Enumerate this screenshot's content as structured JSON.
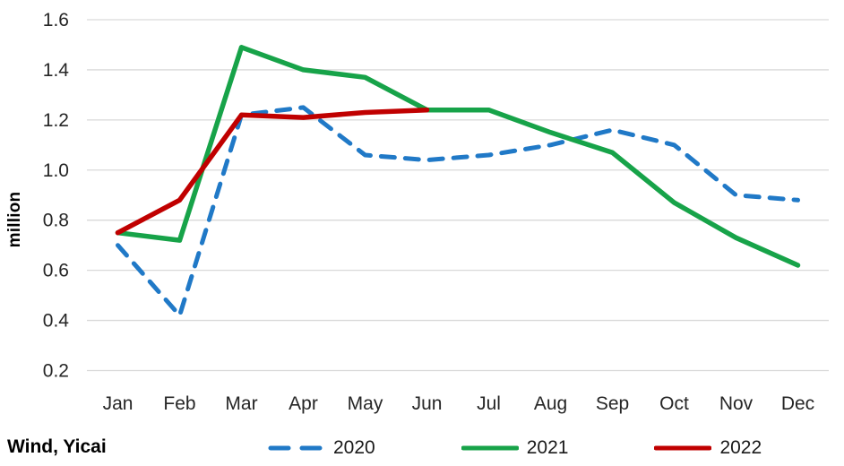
{
  "chart_data": {
    "type": "line",
    "title": "",
    "xlabel": "",
    "ylabel": "million",
    "source": "Wind, Yicai",
    "categories": [
      "Jan",
      "Feb",
      "Mar",
      "Apr",
      "May",
      "Jun",
      "Jul",
      "Aug",
      "Sep",
      "Oct",
      "Nov",
      "Dec"
    ],
    "yticks": [
      0.2,
      0.4,
      0.6,
      0.8,
      1.0,
      1.2,
      1.4,
      1.6
    ],
    "ytick_labels": [
      "0.2",
      "0.4",
      "0.6",
      "0.8",
      "1.0",
      "1.2",
      "1.4",
      "1.6"
    ],
    "ylim": [
      0.2,
      1.6
    ],
    "grid": "horizontal",
    "legend_position": "bottom",
    "colors": {
      "blue_2020": "#2079c7",
      "green_2021": "#17a349",
      "red_2022": "#c00000",
      "gridline": "#d9d9d9",
      "tick_text": "#262626"
    },
    "series": [
      {
        "name": "2020",
        "color": "#2079c7",
        "style": "dashed",
        "values": [
          0.7,
          0.42,
          1.22,
          1.25,
          1.06,
          1.04,
          1.06,
          1.1,
          1.16,
          1.1,
          0.9,
          0.88
        ]
      },
      {
        "name": "2021",
        "color": "#17a349",
        "style": "solid",
        "values": [
          0.75,
          0.72,
          1.49,
          1.4,
          1.37,
          1.24,
          1.24,
          1.15,
          1.07,
          0.87,
          0.73,
          0.62
        ]
      },
      {
        "name": "2022",
        "color": "#c00000",
        "style": "solid",
        "values": [
          0.75,
          0.88,
          1.22,
          1.21,
          1.23,
          1.24,
          null,
          null,
          null,
          null,
          null,
          null
        ]
      }
    ]
  }
}
